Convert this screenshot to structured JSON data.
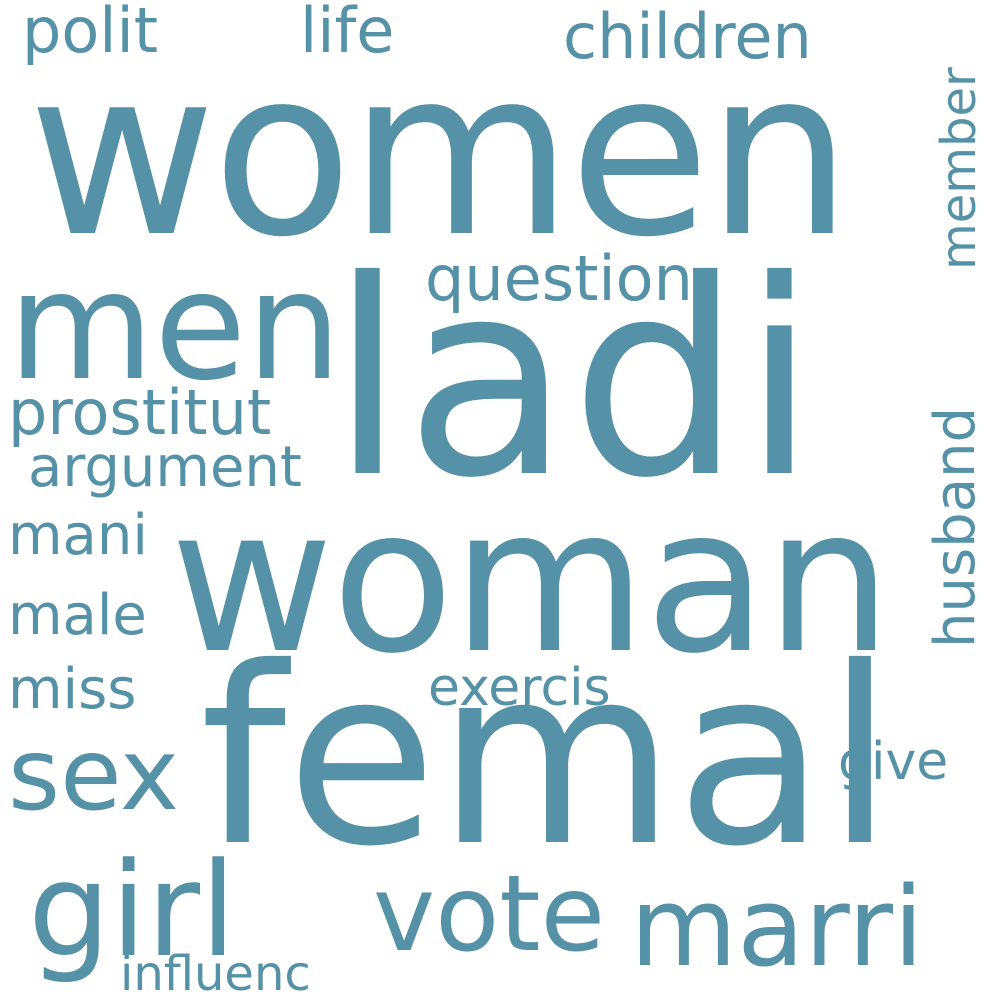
{
  "word_cloud": {
    "color": "#5592a8",
    "background": "#ffffff",
    "words": {
      "women": "women",
      "polit": "polit",
      "life": "life",
      "children": "children",
      "member": "member",
      "men": "men",
      "ladi": "ladi",
      "question": "question",
      "prostitut": "prostitut",
      "argument": "argument",
      "husband": "husband",
      "mani": "mani",
      "woman": "woman",
      "male": "male",
      "miss": "miss",
      "exercis": "exercis",
      "sex": "sex",
      "femal": "femal",
      "give": "give",
      "girl": "girl",
      "vote": "vote",
      "marri": "marri",
      "influenc": "influenc"
    }
  }
}
